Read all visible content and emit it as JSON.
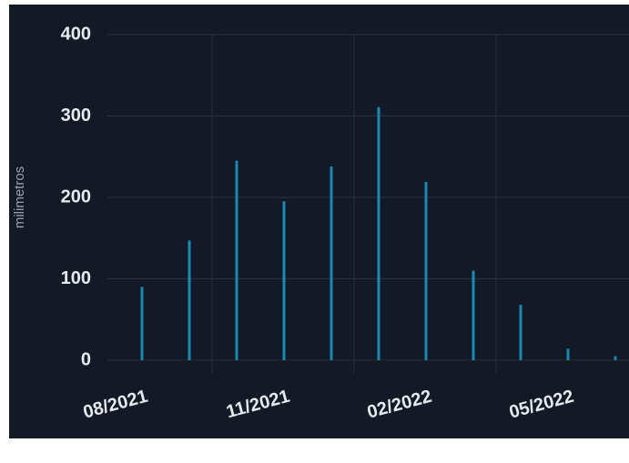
{
  "chart_data": {
    "type": "bar",
    "y_label": "milimetros",
    "categories": [
      "08/2021",
      null,
      null,
      "11/2021",
      null,
      null,
      "02/2022",
      null,
      null,
      "05/2022",
      null
    ],
    "values": [
      90,
      147,
      245,
      195,
      238,
      311,
      219,
      110,
      68,
      14,
      5
    ],
    "color": "#1a8ab5",
    "ylim": [
      0,
      400
    ],
    "yticks": [
      0,
      100,
      200,
      300,
      400
    ],
    "grid": true
  }
}
